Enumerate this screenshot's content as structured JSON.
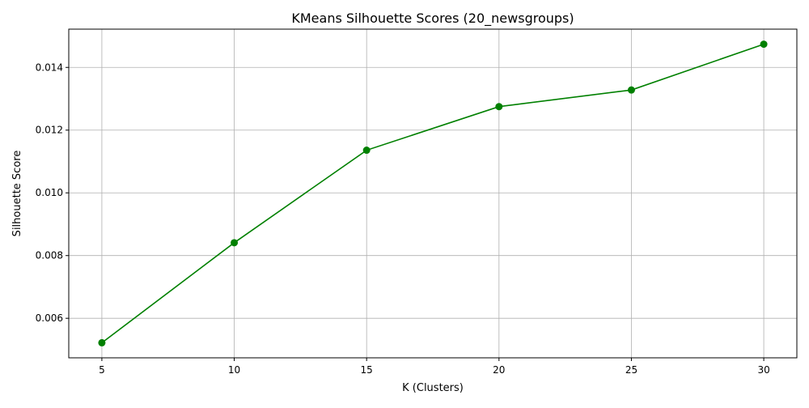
{
  "chart_data": {
    "type": "line",
    "title": "KMeans Silhouette Scores (20_newsgroups)",
    "xlabel": "K (Clusters)",
    "ylabel": "Silhouette Score",
    "x": [
      5,
      10,
      15,
      20,
      25,
      30
    ],
    "series": [
      {
        "values": [
          0.00522,
          0.00841,
          0.01136,
          0.01275,
          0.01328,
          0.01474
        ],
        "color": "#008000",
        "marker": "circle"
      }
    ],
    "xticks": [
      5,
      10,
      15,
      20,
      25,
      30
    ],
    "xtick_labels": [
      "5",
      "10",
      "15",
      "20",
      "25",
      "30"
    ],
    "yticks": [
      0.006,
      0.008,
      0.01,
      0.012,
      0.014
    ],
    "ytick_labels": [
      "0.006",
      "0.008",
      "0.010",
      "0.012",
      "0.014"
    ],
    "xlim": [
      3.75,
      31.25
    ],
    "ylim": [
      0.00474,
      0.01522
    ],
    "grid": true,
    "legend": false
  }
}
